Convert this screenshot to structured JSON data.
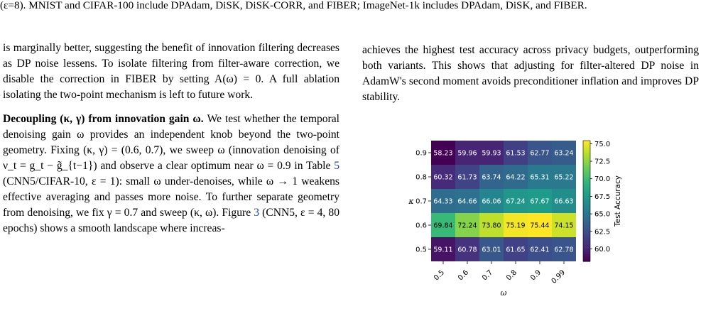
{
  "top_caption": "(ε=8). MNIST and CIFAR-100 include DPAdam, DiSK, DiSK-CORR, and FIBER; ImageNet-1k includes DPAdam, DiSK, and FIBER.",
  "left_column": {
    "para1": {
      "s1": "is marginally better, suggesting the benefit of innovation filtering decreases as DP noise lessens. To isolate filtering from filter-aware correction, we disable the correction in ",
      "fiber": "FIBER",
      "s2": " by setting A(ω) = 0. A full ablation isolating the two-point mechanism is left to future work."
    },
    "para2": {
      "heading": "Decoupling (κ, γ) from innovation gain ω.",
      "s1": " We test whether the temporal denoising gain ω provides an independent knob beyond the two-point geometry. Fixing (κ, γ) = (0.6, 0.7), we sweep ω (innovation denoising of ν_t = g_t − g̃_{t−1}) and observe a clear optimum near ω = 0.9 in Table ",
      "table_ref": "5",
      "s2": " (CNN5/CIFAR-10, ε = 1): small ω under-denoises, while ω → 1 weakens effective averaging and passes more noise. To further separate geometry from denoising, we fix γ = 0.7 and sweep (κ, ω). Figure ",
      "figure_ref": "3",
      "s3": " (CNN5, ε = 4, 80 epochs) shows a smooth landscape where increas-"
    }
  },
  "right_column": {
    "para1": "achieves the highest test accuracy across privacy budgets, outperforming both variants. This shows that adjusting for filter-altered DP noise in AdamW's second moment avoids preconditioner inflation and improves DP stability."
  },
  "chart_data": {
    "type": "heatmap",
    "xlabel": "ω",
    "ylabel": "κ",
    "x": [
      "0.5",
      "0.6",
      "0.7",
      "0.8",
      "0.9",
      "0.99"
    ],
    "y": [
      "0.9",
      "0.8",
      "0.7",
      "0.6",
      "0.5"
    ],
    "values": [
      [
        58.23,
        59.96,
        59.93,
        61.53,
        62.77,
        63.24
      ],
      [
        60.32,
        61.73,
        63.74,
        64.22,
        65.31,
        65.22
      ],
      [
        64.33,
        64.66,
        66.06,
        67.24,
        67.67,
        66.63
      ],
      [
        69.84,
        72.24,
        73.8,
        75.19,
        75.44,
        74.15
      ],
      [
        59.11,
        60.78,
        63.01,
        61.65,
        62.41,
        62.78
      ]
    ],
    "colorbar": {
      "label": "Test Accuracy",
      "ticks": [
        "75.0",
        "72.5",
        "70.0",
        "67.5",
        "65.0",
        "62.5",
        "60.0"
      ],
      "tick_values": [
        75.0,
        72.5,
        70.0,
        67.5,
        65.0,
        62.5,
        60.0
      ],
      "range": [
        58.23,
        75.44
      ],
      "colormap": "viridis"
    }
  }
}
